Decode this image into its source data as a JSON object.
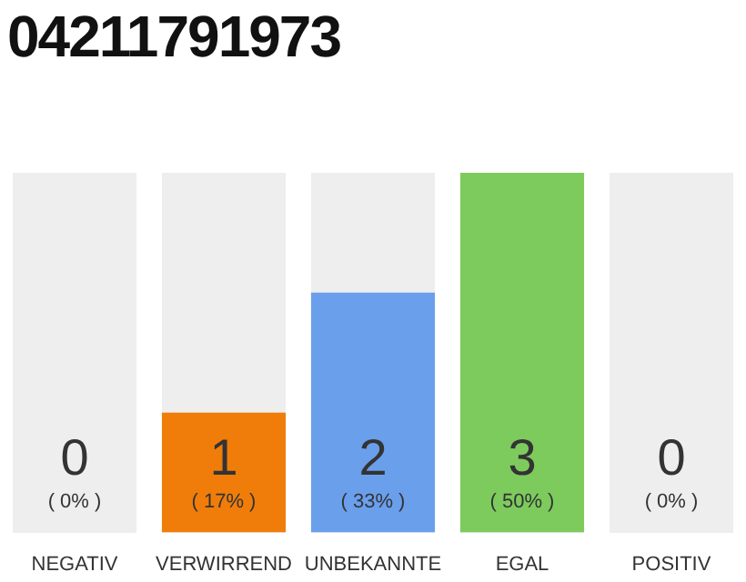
{
  "chart_data": {
    "type": "bar",
    "title": "04211791973",
    "categories": [
      "NEGATIV",
      "VERWIRREND",
      "UNBEKANNTE",
      "EGAL",
      "POSITIV"
    ],
    "values": [
      0,
      1,
      2,
      3,
      0
    ],
    "colors": [
      "#eeeeee",
      "#f07d0a",
      "#6a9fec",
      "#7dcb5d",
      "#eeeeee"
    ],
    "value_labels": [
      "0\n( 0% )",
      "1\n( 17% )",
      "2\n( 33% )",
      "3\n( 50% )",
      "0\n( 0% )"
    ],
    "grid": false,
    "legend": false
  }
}
